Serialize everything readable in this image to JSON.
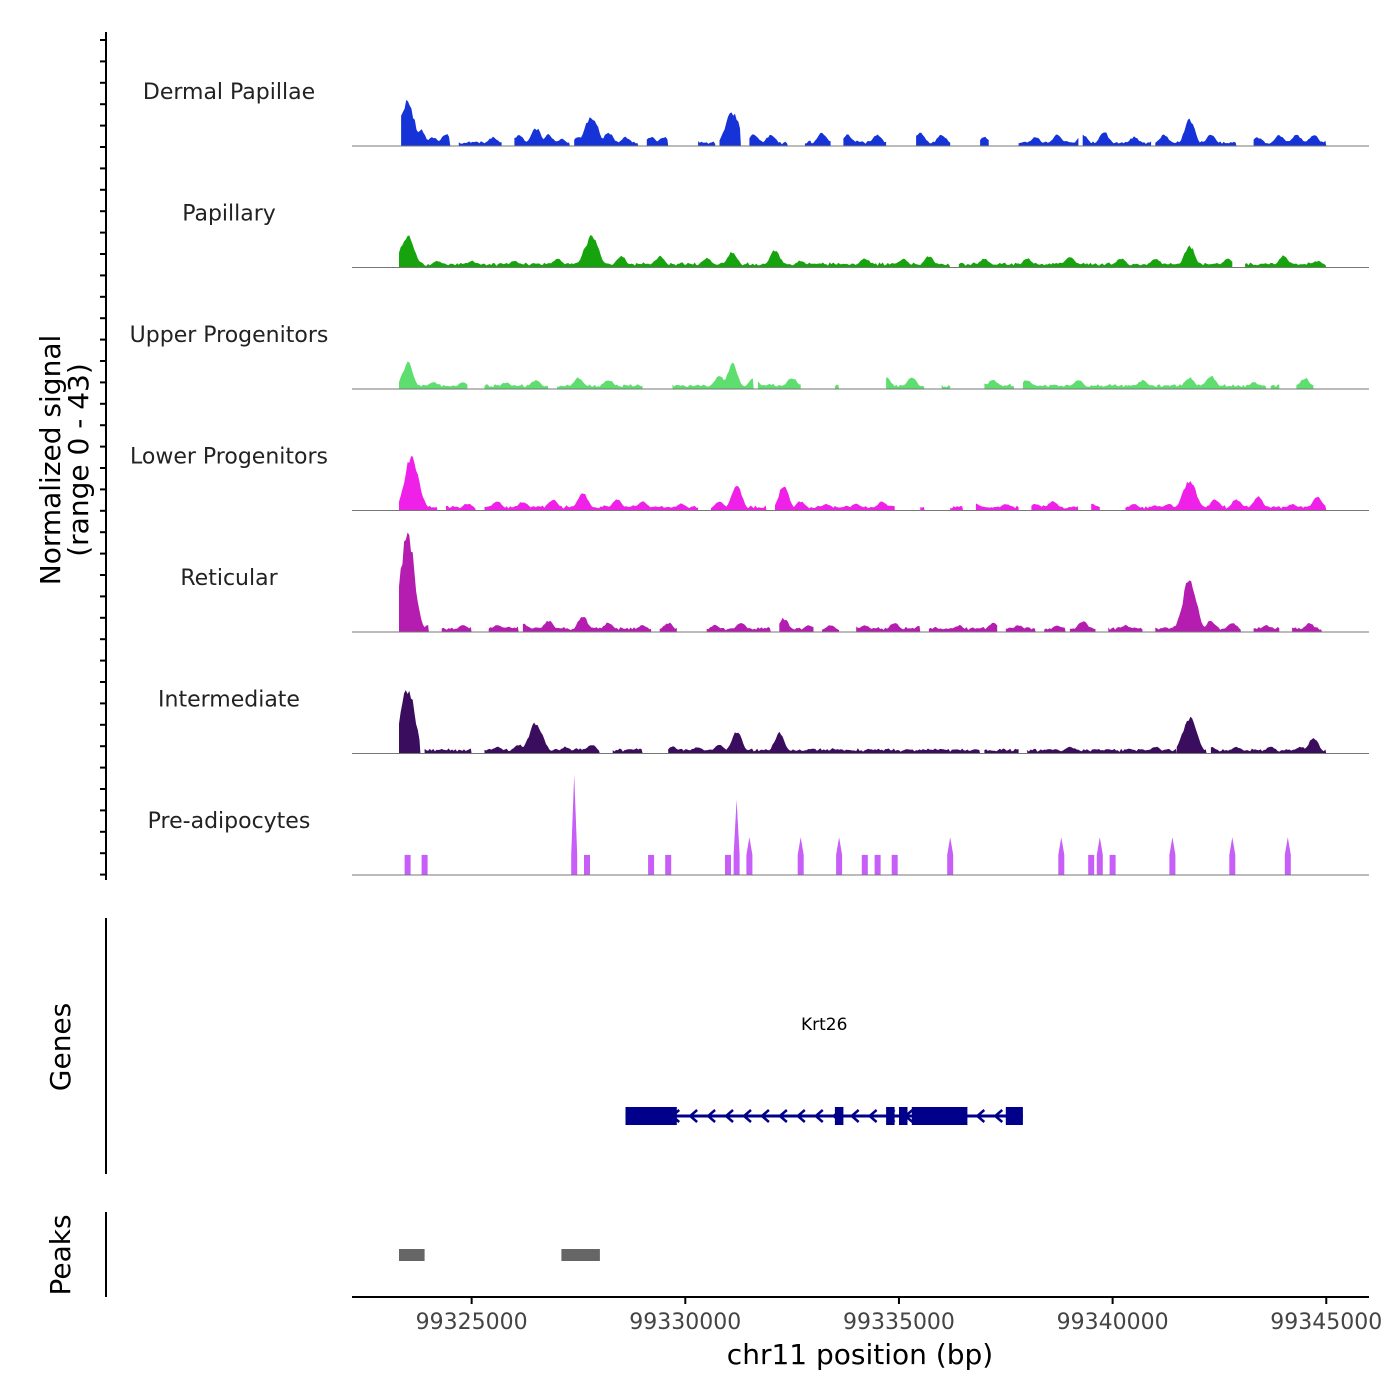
{
  "chart_data": {
    "type": "area",
    "title": "",
    "ylabel_line1": "Normalized signal",
    "ylabel_line2": "(range 0 - 43)",
    "xlabel": "chr11 position (bp)",
    "y_range": [
      0,
      43
    ],
    "x_range": [
      99322200,
      99346000
    ],
    "x_ticks": [
      99325000,
      99330000,
      99335000,
      99340000,
      99345000
    ],
    "x_tick_labels": [
      "99325000",
      "99330000",
      "99335000",
      "99340000",
      "99345000"
    ],
    "data_extent": [
      99323300,
      99345000
    ],
    "tracks": [
      {
        "name": "Dermal Papillae",
        "color": "#1533d6",
        "peaks": [
          [
            99323350,
            10
          ],
          [
            99323500,
            20
          ],
          [
            99323800,
            7
          ],
          [
            99324100,
            4
          ],
          [
            99324400,
            5
          ],
          [
            99325500,
            4
          ],
          [
            99326100,
            5
          ],
          [
            99326500,
            8
          ],
          [
            99326800,
            5
          ],
          [
            99327100,
            3
          ],
          [
            99327500,
            4
          ],
          [
            99327800,
            13
          ],
          [
            99328200,
            6
          ],
          [
            99328600,
            4
          ],
          [
            99329200,
            4
          ],
          [
            99329500,
            4
          ],
          [
            99331100,
            15
          ],
          [
            99331600,
            5
          ],
          [
            99332000,
            5
          ],
          [
            99333200,
            6
          ],
          [
            99333800,
            5
          ],
          [
            99334500,
            5
          ],
          [
            99335500,
            6
          ],
          [
            99336000,
            5
          ],
          [
            99337000,
            4
          ],
          [
            99338200,
            4
          ],
          [
            99338700,
            5
          ],
          [
            99339300,
            5
          ],
          [
            99339800,
            6
          ],
          [
            99340500,
            4
          ],
          [
            99341200,
            5
          ],
          [
            99341800,
            12
          ],
          [
            99342300,
            5
          ],
          [
            99343400,
            4
          ],
          [
            99343900,
            5
          ],
          [
            99344300,
            5
          ],
          [
            99344700,
            5
          ]
        ],
        "segments": [
          [
            99323350,
            99324500
          ],
          [
            99324700,
            99325700
          ],
          [
            99326000,
            99327300
          ],
          [
            99327400,
            99328900
          ],
          [
            99329100,
            99329600
          ],
          [
            99330300,
            99330700
          ],
          [
            99330800,
            99331300
          ],
          [
            99331500,
            99332400
          ],
          [
            99332800,
            99333400
          ],
          [
            99333700,
            99334700
          ],
          [
            99335400,
            99336200
          ],
          [
            99336900,
            99337100
          ],
          [
            99337800,
            99339200
          ],
          [
            99339300,
            99340900
          ],
          [
            99341000,
            99342900
          ],
          [
            99343300,
            99345000
          ]
        ]
      },
      {
        "name": "Papillary",
        "color": "#17a30e",
        "peaks": [
          [
            99323500,
            14
          ],
          [
            99324200,
            3
          ],
          [
            99325000,
            3
          ],
          [
            99326000,
            3
          ],
          [
            99327000,
            4
          ],
          [
            99327800,
            14
          ],
          [
            99328500,
            5
          ],
          [
            99329400,
            5
          ],
          [
            99330500,
            4
          ],
          [
            99331100,
            7
          ],
          [
            99332100,
            8
          ],
          [
            99332700,
            3
          ],
          [
            99334200,
            4
          ],
          [
            99335100,
            4
          ],
          [
            99335700,
            5
          ],
          [
            99337000,
            4
          ],
          [
            99338000,
            4
          ],
          [
            99339000,
            5
          ],
          [
            99340200,
            4
          ],
          [
            99341000,
            4
          ],
          [
            99341800,
            10
          ],
          [
            99342700,
            4
          ],
          [
            99344000,
            5
          ],
          [
            99344800,
            3
          ]
        ],
        "segments": [
          [
            99323300,
            99336200
          ],
          [
            99336400,
            99342800
          ],
          [
            99343100,
            99345000
          ]
        ]
      },
      {
        "name": "Upper Progenitors",
        "color": "#5ede6f",
        "peaks": [
          [
            99323500,
            12
          ],
          [
            99324100,
            3
          ],
          [
            99324800,
            3
          ],
          [
            99325800,
            3
          ],
          [
            99326500,
            4
          ],
          [
            99327500,
            5
          ],
          [
            99328200,
            4
          ],
          [
            99329500,
            3
          ],
          [
            99330800,
            6
          ],
          [
            99331100,
            11
          ],
          [
            99331600,
            5
          ],
          [
            99332500,
            5
          ],
          [
            99334700,
            5
          ],
          [
            99335300,
            5
          ],
          [
            99337200,
            4
          ],
          [
            99338000,
            4
          ],
          [
            99339200,
            4
          ],
          [
            99340700,
            4
          ],
          [
            99341800,
            5
          ],
          [
            99342300,
            6
          ],
          [
            99343300,
            3
          ],
          [
            99344500,
            5
          ]
        ],
        "segments": [
          [
            99323300,
            99324900
          ],
          [
            99325300,
            99326800
          ],
          [
            99327000,
            99329000
          ],
          [
            99329700,
            99331600
          ],
          [
            99331700,
            99332700
          ],
          [
            99333500,
            99333600
          ],
          [
            99334700,
            99335600
          ],
          [
            99336000,
            99336200
          ],
          [
            99337000,
            99337700
          ],
          [
            99337900,
            99343600
          ],
          [
            99343700,
            99343900
          ],
          [
            99344300,
            99344700
          ]
        ]
      },
      {
        "name": "Lower Progenitors",
        "color": "#ef20e8",
        "peaks": [
          [
            99323600,
            25
          ],
          [
            99324300,
            3
          ],
          [
            99324900,
            3
          ],
          [
            99325600,
            4
          ],
          [
            99326200,
            4
          ],
          [
            99326900,
            5
          ],
          [
            99327600,
            8
          ],
          [
            99328400,
            5
          ],
          [
            99329000,
            4
          ],
          [
            99329900,
            3
          ],
          [
            99330800,
            4
          ],
          [
            99331200,
            11
          ],
          [
            99332300,
            11
          ],
          [
            99332700,
            4
          ],
          [
            99333300,
            3
          ],
          [
            99334000,
            3
          ],
          [
            99334600,
            4
          ],
          [
            99335200,
            3
          ],
          [
            99336000,
            3
          ],
          [
            99336800,
            3
          ],
          [
            99337500,
            3
          ],
          [
            99338200,
            3
          ],
          [
            99338600,
            4
          ],
          [
            99339500,
            3
          ],
          [
            99340500,
            3
          ],
          [
            99341300,
            3
          ],
          [
            99341800,
            13
          ],
          [
            99342400,
            5
          ],
          [
            99342900,
            5
          ],
          [
            99343400,
            6
          ],
          [
            99344200,
            3
          ],
          [
            99344800,
            6
          ]
        ],
        "segments": [
          [
            99323300,
            99324200
          ],
          [
            99324400,
            99325100
          ],
          [
            99325300,
            99330300
          ],
          [
            99330600,
            99331900
          ],
          [
            99332100,
            99334900
          ],
          [
            99335500,
            99335600
          ],
          [
            99336200,
            99336500
          ],
          [
            99336800,
            99337800
          ],
          [
            99338100,
            99339200
          ],
          [
            99339500,
            99339700
          ],
          [
            99340300,
            99345000
          ]
        ]
      },
      {
        "name": "Reticular",
        "color": "#b51cb0",
        "peaks": [
          [
            99323500,
            43
          ],
          [
            99324000,
            3
          ],
          [
            99324800,
            3
          ],
          [
            99325600,
            3
          ],
          [
            99326200,
            4
          ],
          [
            99326800,
            5
          ],
          [
            99327600,
            7
          ],
          [
            99328200,
            4
          ],
          [
            99329000,
            3
          ],
          [
            99329600,
            4
          ],
          [
            99330700,
            3
          ],
          [
            99331300,
            4
          ],
          [
            99332300,
            6
          ],
          [
            99332900,
            3
          ],
          [
            99333400,
            3
          ],
          [
            99334200,
            3
          ],
          [
            99334900,
            4
          ],
          [
            99335500,
            3
          ],
          [
            99336400,
            3
          ],
          [
            99337200,
            4
          ],
          [
            99337800,
            3
          ],
          [
            99338700,
            3
          ],
          [
            99339300,
            5
          ],
          [
            99340300,
            3
          ],
          [
            99340900,
            3
          ],
          [
            99341500,
            3
          ],
          [
            99341800,
            23
          ],
          [
            99342300,
            5
          ],
          [
            99342800,
            4
          ],
          [
            99343600,
            3
          ],
          [
            99344100,
            3
          ],
          [
            99344600,
            4
          ]
        ],
        "segments": [
          [
            99323300,
            99324000
          ],
          [
            99324300,
            99325000
          ],
          [
            99325400,
            99326100
          ],
          [
            99326200,
            99329200
          ],
          [
            99329400,
            99329800
          ],
          [
            99330500,
            99332000
          ],
          [
            99332200,
            99333000
          ],
          [
            99333200,
            99333600
          ],
          [
            99334000,
            99335500
          ],
          [
            99335700,
            99337300
          ],
          [
            99337500,
            99338200
          ],
          [
            99338400,
            99338900
          ],
          [
            99339000,
            99339600
          ],
          [
            99339900,
            99340700
          ],
          [
            99341000,
            99343000
          ],
          [
            99343300,
            99343900
          ],
          [
            99344200,
            99344900
          ]
        ]
      },
      {
        "name": "Intermediate",
        "color": "#3b0d5e",
        "peaks": [
          [
            99323500,
            30
          ],
          [
            99323800,
            3
          ],
          [
            99324300,
            2
          ],
          [
            99325000,
            2
          ],
          [
            99325600,
            3
          ],
          [
            99326100,
            4
          ],
          [
            99326500,
            14
          ],
          [
            99327200,
            3
          ],
          [
            99327800,
            4
          ],
          [
            99328700,
            2
          ],
          [
            99329700,
            3
          ],
          [
            99330300,
            3
          ],
          [
            99330800,
            4
          ],
          [
            99331200,
            10
          ],
          [
            99332200,
            9
          ],
          [
            99332900,
            2
          ],
          [
            99333600,
            2
          ],
          [
            99334300,
            2
          ],
          [
            99335200,
            2
          ],
          [
            99336000,
            2
          ],
          [
            99336800,
            2
          ],
          [
            99337800,
            2
          ],
          [
            99338500,
            2
          ],
          [
            99339000,
            3
          ],
          [
            99339900,
            2
          ],
          [
            99340400,
            2
          ],
          [
            99341000,
            3
          ],
          [
            99341800,
            17
          ],
          [
            99342300,
            3
          ],
          [
            99342900,
            3
          ],
          [
            99343700,
            3
          ],
          [
            99344400,
            3
          ],
          [
            99344700,
            7
          ]
        ],
        "segments": [
          [
            99323300,
            99323800
          ],
          [
            99323900,
            99325000
          ],
          [
            99325300,
            99328000
          ],
          [
            99328300,
            99329000
          ],
          [
            99329600,
            99336900
          ],
          [
            99337000,
            99337800
          ],
          [
            99338000,
            99341500
          ],
          [
            99341500,
            99342200
          ],
          [
            99342300,
            99345000
          ]
        ]
      },
      {
        "name": "Pre-adipocytes",
        "color": "#c65ef7",
        "peaks": [
          [
            99323500,
            8
          ],
          [
            99323900,
            8
          ],
          [
            99327400,
            40
          ],
          [
            99327700,
            8
          ],
          [
            99329200,
            8
          ],
          [
            99329600,
            8
          ],
          [
            99331000,
            8
          ],
          [
            99331200,
            30
          ],
          [
            99331500,
            15
          ],
          [
            99332700,
            15
          ],
          [
            99333600,
            15
          ],
          [
            99334200,
            8
          ],
          [
            99334500,
            8
          ],
          [
            99334900,
            8
          ],
          [
            99336200,
            15
          ],
          [
            99338800,
            15
          ],
          [
            99339500,
            8
          ],
          [
            99339700,
            15
          ],
          [
            99340000,
            8
          ],
          [
            99341400,
            15
          ],
          [
            99342800,
            15
          ],
          [
            99344100,
            15
          ]
        ],
        "segments": []
      }
    ],
    "genes_panel_label": "Genes",
    "peaks_panel_label": "Peaks",
    "gene": {
      "name": "Krt26",
      "strand": "-",
      "start": 99328600,
      "end": 99337900,
      "color": "#00008b",
      "exons": [
        [
          99328600,
          99329800
        ],
        [
          99333500,
          99333700
        ],
        [
          99334700,
          99334900
        ],
        [
          99335000,
          99335200
        ],
        [
          99335300,
          99336600
        ],
        [
          99337500,
          99337900
        ]
      ]
    },
    "peak_regions": [
      [
        99323300,
        99323900
      ],
      [
        99327100,
        99328000
      ]
    ],
    "peak_color": "#666666"
  }
}
